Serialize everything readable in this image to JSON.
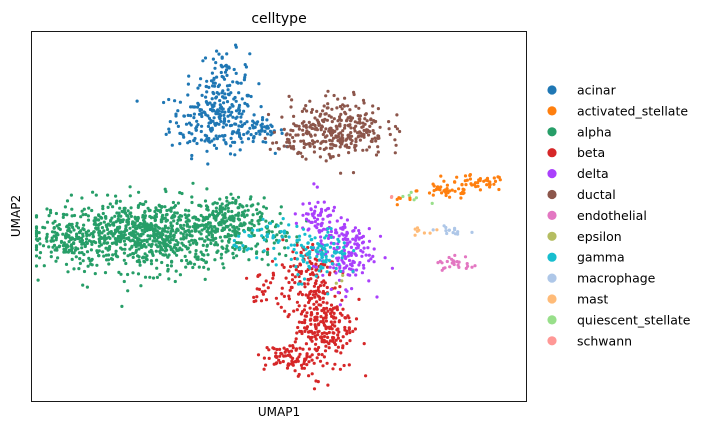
{
  "chart_data": {
    "type": "scatter",
    "title": "celltype",
    "xlabel": "UMAP1",
    "ylabel": "UMAP2",
    "xticks": "none",
    "yticks": "none",
    "xlim": [
      0,
      100
    ],
    "ylim": [
      0,
      100
    ],
    "grid": false,
    "legend_position": "right-outside",
    "series": [
      {
        "name": "acinar",
        "color": "#1f77b4",
        "clusters": [
          {
            "x": 37,
            "y": 76,
            "sx": 4.5,
            "sy": 4.5,
            "n": 220
          },
          {
            "x": 39,
            "y": 87,
            "sx": 2.5,
            "sy": 4,
            "n": 80
          },
          {
            "x": 46,
            "y": 73,
            "sx": 2.5,
            "sy": 1.6,
            "n": 50
          }
        ]
      },
      {
        "name": "activated_stellate",
        "color": "#ff7f0e",
        "clusters": [
          {
            "x": 84,
            "y": 57,
            "sx": 3,
            "sy": 1.2,
            "n": 40
          },
          {
            "x": 90,
            "y": 59,
            "sx": 3,
            "sy": 1.1,
            "n": 40
          },
          {
            "x": 75,
            "y": 54,
            "sx": 1.5,
            "sy": 0.8,
            "n": 6
          }
        ]
      },
      {
        "name": "alpha",
        "color": "#279e68",
        "clusters": [
          {
            "x": 24,
            "y": 45,
            "sx": 10,
            "sy": 4.8,
            "n": 900
          },
          {
            "x": 8,
            "y": 44,
            "sx": 3,
            "sy": 2.5,
            "n": 120
          },
          {
            "x": 39,
            "y": 49,
            "sx": 4,
            "sy": 3,
            "n": 150
          },
          {
            "x": 48,
            "y": 46,
            "sx": 2.5,
            "sy": 3.5,
            "n": 35
          }
        ]
      },
      {
        "name": "beta",
        "color": "#d62728",
        "clusters": [
          {
            "x": 59,
            "y": 21,
            "sx": 3,
            "sy": 6.5,
            "n": 260
          },
          {
            "x": 55,
            "y": 35,
            "sx": 3,
            "sy": 4,
            "n": 100
          },
          {
            "x": 52,
            "y": 12,
            "sx": 2.5,
            "sy": 2,
            "n": 70
          },
          {
            "x": 47,
            "y": 30,
            "sx": 2,
            "sy": 2.5,
            "n": 25
          }
        ]
      },
      {
        "name": "delta",
        "color": "#aa40fc",
        "clusters": [
          {
            "x": 63,
            "y": 41,
            "sx": 3,
            "sy": 5,
            "n": 170
          },
          {
            "x": 57,
            "y": 49,
            "sx": 2,
            "sy": 2.5,
            "n": 50
          }
        ]
      },
      {
        "name": "ductal",
        "color": "#8c564b",
        "clusters": [
          {
            "x": 62,
            "y": 74,
            "sx": 4.8,
            "sy": 4,
            "n": 300
          },
          {
            "x": 52,
            "y": 70,
            "sx": 2,
            "sy": 2,
            "n": 30
          }
        ]
      },
      {
        "name": "endothelial",
        "color": "#e377c2",
        "clusters": [
          {
            "x": 86,
            "y": 37,
            "sx": 2.2,
            "sy": 1.2,
            "n": 25
          }
        ]
      },
      {
        "name": "epsilon",
        "color": "#b5bd61",
        "clusters": [
          {
            "x": 62,
            "y": 33,
            "sx": 1,
            "sy": 1,
            "n": 3
          }
        ]
      },
      {
        "name": "gamma",
        "color": "#17becf",
        "clusters": [
          {
            "x": 58,
            "y": 40,
            "sx": 3,
            "sy": 3.5,
            "n": 110
          },
          {
            "x": 48,
            "y": 44,
            "sx": 3.5,
            "sy": 2,
            "n": 40
          }
        ]
      },
      {
        "name": "macrophage",
        "color": "#aec7e8",
        "clusters": [
          {
            "x": 85,
            "y": 46,
            "sx": 2.5,
            "sy": 0.6,
            "n": 14
          }
        ]
      },
      {
        "name": "mast",
        "color": "#ffbb78",
        "clusters": [
          {
            "x": 80,
            "y": 46,
            "sx": 1.5,
            "sy": 0.6,
            "n": 8
          }
        ]
      },
      {
        "name": "quiescent_stellate",
        "color": "#98df8a",
        "clusters": [
          {
            "x": 78,
            "y": 55,
            "sx": 2,
            "sy": 1.2,
            "n": 6
          }
        ]
      },
      {
        "name": "schwann",
        "color": "#ff9896",
        "clusters": [
          {
            "x": 73,
            "y": 55,
            "sx": 0.5,
            "sy": 0.5,
            "n": 2
          }
        ]
      }
    ]
  }
}
